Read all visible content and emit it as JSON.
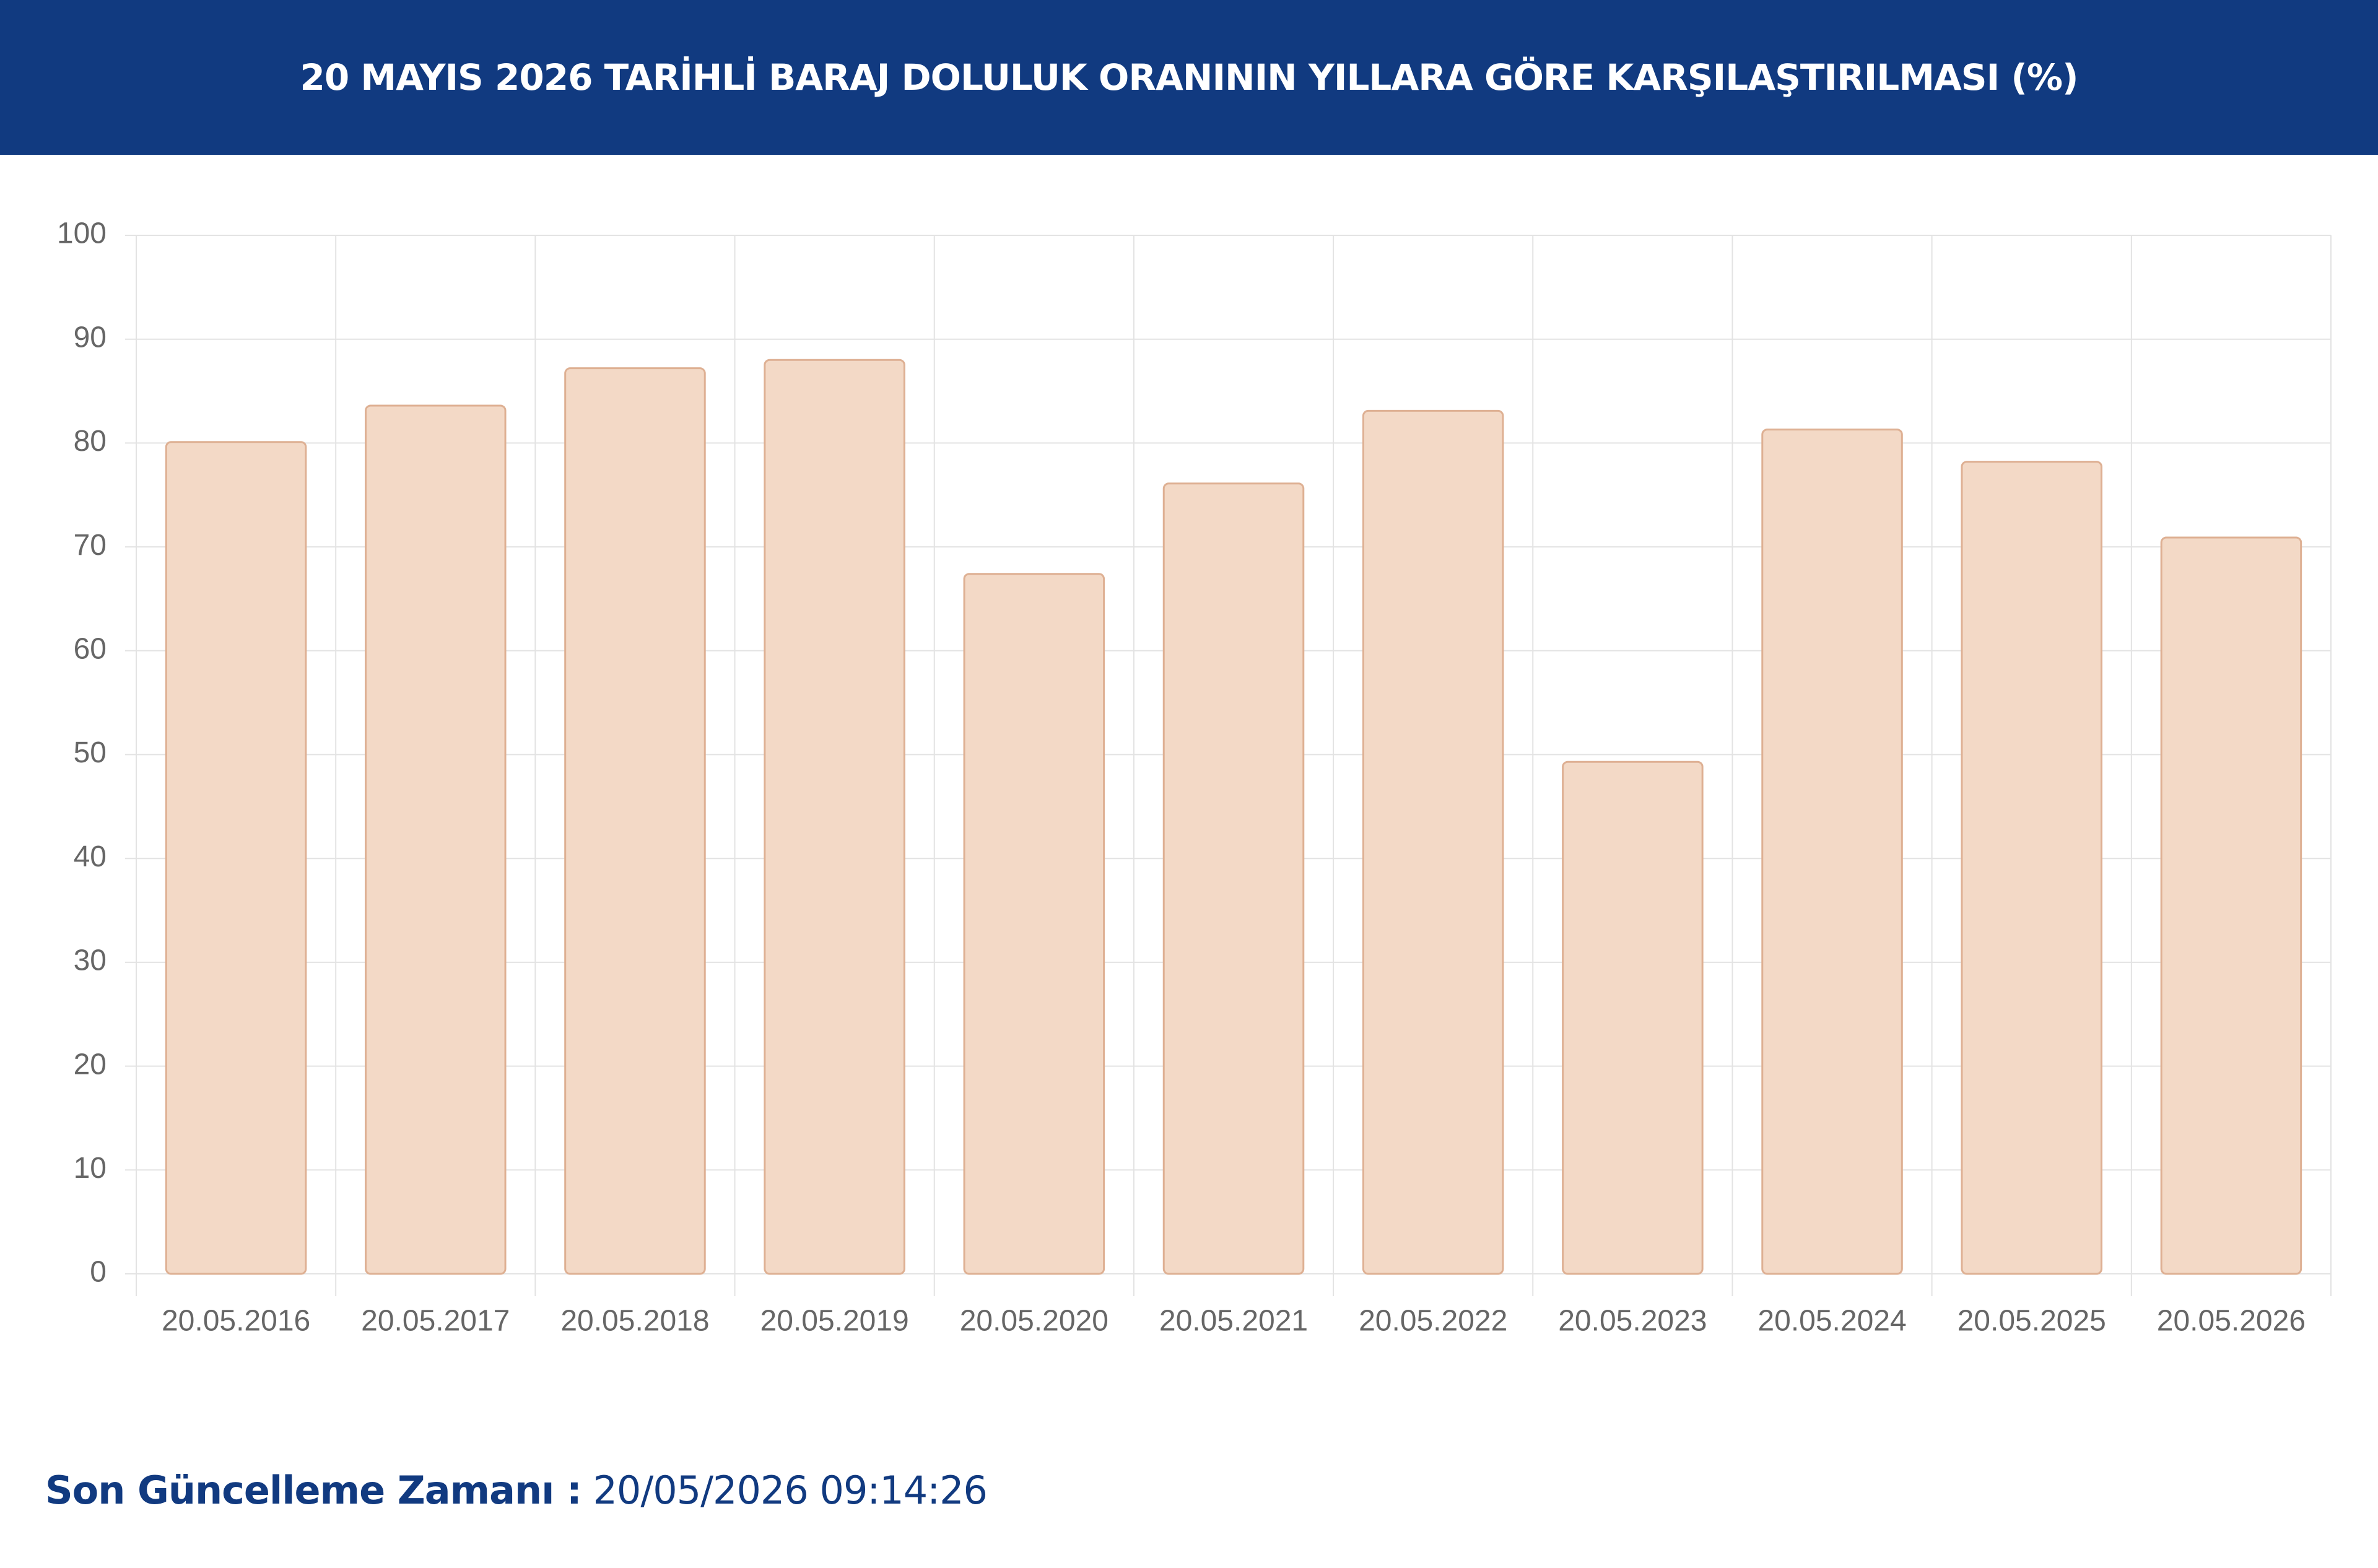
{
  "chart_data": {
    "type": "bar",
    "title": "20 MAYIS 2026 TARİHLİ BARAJ DOLULUK ORANININ YILLARA GÖRE KARŞILAŞTIRILMASI (%)",
    "categories": [
      "20.05.2016",
      "20.05.2017",
      "20.05.2018",
      "20.05.2019",
      "20.05.2020",
      "20.05.2021",
      "20.05.2022",
      "20.05.2023",
      "20.05.2024",
      "20.05.2025",
      "20.05.2026"
    ],
    "values": [
      80.1,
      83.6,
      87.2,
      88.0,
      67.4,
      76.1,
      83.1,
      49.3,
      81.3,
      78.2,
      70.9
    ],
    "color": "#f3d9c6",
    "ylim": [
      0,
      100
    ],
    "yticks": [
      0,
      10,
      20,
      30,
      40,
      50,
      60,
      70,
      80,
      90,
      100
    ],
    "grid": true
  },
  "footer": {
    "label": "Son Güncelleme Zamanı :",
    "value": "20/05/2026 09:14:26"
  }
}
